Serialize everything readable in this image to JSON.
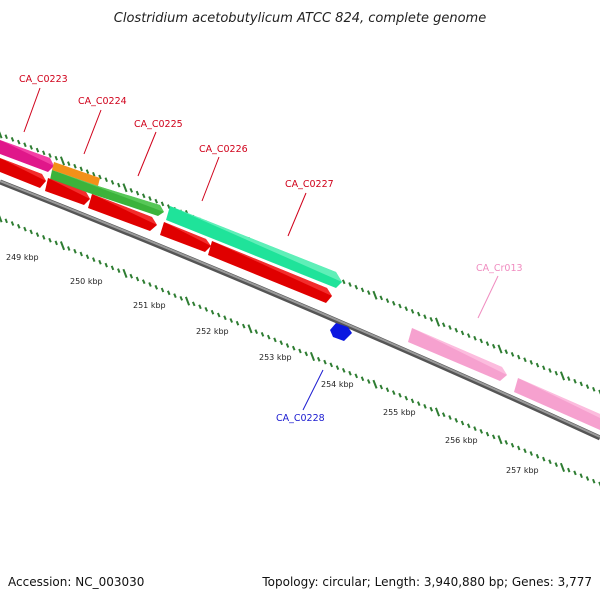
{
  "title": "Clostridium acetobutylicum ATCC 824, complete genome",
  "footer": {
    "accession": "Accession: NC_003030",
    "summary": "Topology: circular; Length: 3,940,880 bp; Genes: 3,777"
  },
  "colors": {
    "backbone": "#8c8c8c",
    "tick": "#2e7d32",
    "forward_label": "#d0021b",
    "reverse_label": "#1a1ad0",
    "rna_label": "#f08cc0"
  },
  "kbp_ticks": [
    "249 kbp",
    "250 kbp",
    "251 kbp",
    "252 kbp",
    "253 kbp",
    "254 kbp",
    "255 kbp",
    "256 kbp",
    "257 kbp"
  ],
  "gene_labels": [
    {
      "id": "lbl-ca-c0223",
      "text": "CA_C0223",
      "color": "#d0021b"
    },
    {
      "id": "lbl-ca-c0224",
      "text": "CA_C0224",
      "color": "#d0021b"
    },
    {
      "id": "lbl-ca-c0225",
      "text": "CA_C0225",
      "color": "#d0021b"
    },
    {
      "id": "lbl-ca-c0226",
      "text": "CA_C0226",
      "color": "#d0021b"
    },
    {
      "id": "lbl-ca-c0227",
      "text": "CA_C0227",
      "color": "#d0021b"
    },
    {
      "id": "lbl-ca-cr013",
      "text": "CA_Cr013",
      "color": "#f08cc0"
    },
    {
      "id": "lbl-ca-c0228",
      "text": "CA_C0228",
      "color": "#1a1ad0"
    }
  ]
}
